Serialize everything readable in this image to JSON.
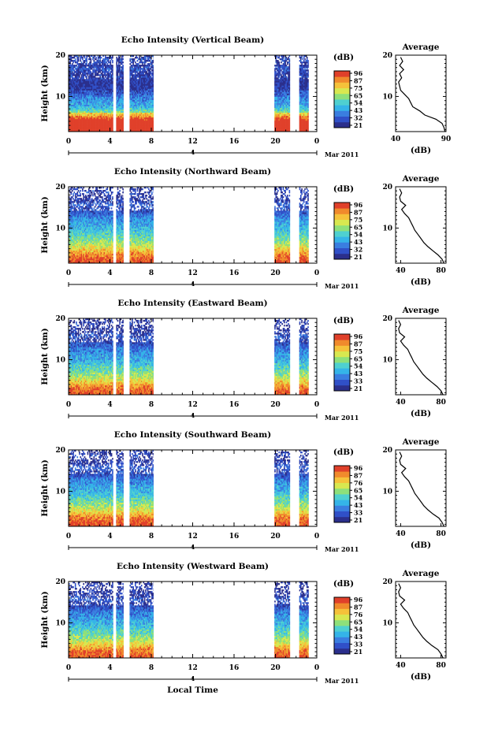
{
  "figure": {
    "xlabel": "Local Time",
    "date_label": "Mar 2011",
    "day_label": "4"
  },
  "colors": {
    "scale": [
      "#2b2f8c",
      "#3050c8",
      "#3a7ee0",
      "#35b4e8",
      "#4fd0d0",
      "#8ee07a",
      "#d8e850",
      "#f5c23a",
      "#f08a2c",
      "#e0402a"
    ]
  },
  "chart_data": [
    {
      "type": "heatmap",
      "title": "Echo Intensity (Vertical Beam)",
      "ylabel": "Height (km)",
      "x_ticks": [
        "0",
        "4",
        "8",
        "12",
        "16",
        "20",
        "0"
      ],
      "y_ticks": [
        "10",
        "20"
      ],
      "xlim": [
        0,
        24
      ],
      "ylim": [
        1.5,
        20
      ],
      "colorbar_unit": "(dB)",
      "colorbar_ticks": [
        "96",
        "87",
        "75",
        "65",
        "54",
        "43",
        "32",
        "21"
      ],
      "data_intervals_hours": [
        [
          0,
          4.3
        ],
        [
          4.6,
          5.3
        ],
        [
          5.9,
          8.2
        ],
        [
          19.9,
          21.4
        ],
        [
          22.3,
          23.2
        ]
      ],
      "profile": {
        "title": "Average",
        "xlabel": "(dB)",
        "x_ticks": [
          "40",
          "90"
        ],
        "xlim": [
          40,
          90
        ],
        "y_ticks": [
          "10",
          "20"
        ],
        "height": [
          1.5,
          2.5,
          3.5,
          4.5,
          5.5,
          6.5,
          7.5,
          8.5,
          9.5,
          10.5,
          11.5,
          12.5,
          13.5,
          14.5,
          15.5,
          16.5,
          17.5,
          18.5,
          19.5
        ],
        "value": [
          89,
          88,
          86,
          80,
          69,
          64,
          57,
          55,
          53,
          49,
          45,
          44,
          43,
          46,
          44,
          48,
          44,
          47,
          45
        ]
      }
    },
    {
      "type": "heatmap",
      "title": "Echo Intensity (Northward Beam)",
      "ylabel": "Height (km)",
      "x_ticks": [
        "0",
        "4",
        "8",
        "12",
        "16",
        "20",
        "0"
      ],
      "y_ticks": [
        "10",
        "20"
      ],
      "xlim": [
        0,
        24
      ],
      "ylim": [
        1.5,
        20
      ],
      "colorbar_unit": "(dB)",
      "colorbar_ticks": [
        "96",
        "87",
        "75",
        "65",
        "54",
        "43",
        "32",
        "21"
      ],
      "data_intervals_hours": [
        [
          0,
          4.3
        ],
        [
          4.6,
          5.3
        ],
        [
          5.9,
          8.2
        ],
        [
          19.9,
          21.4
        ],
        [
          22.3,
          23.2
        ]
      ],
      "profile": {
        "title": "Average",
        "xlabel": "(dB)",
        "x_ticks": [
          "40",
          "80"
        ],
        "xlim": [
          35,
          85
        ],
        "y_ticks": [
          "10",
          "20"
        ],
        "height": [
          1.5,
          2.5,
          3.5,
          4.5,
          5.5,
          6.5,
          7.5,
          8.5,
          9.5,
          10.5,
          11.5,
          12.5,
          13.5,
          14.5,
          15.5,
          16.5,
          17.5,
          18.5,
          19.5
        ],
        "value": [
          83,
          81,
          77,
          72,
          67,
          63,
          60,
          57,
          54,
          52,
          50,
          48,
          44,
          41,
          45,
          40,
          39,
          41,
          39
        ]
      }
    },
    {
      "type": "heatmap",
      "title": "Echo Intensity (Eastward Beam)",
      "ylabel": "Height (km)",
      "x_ticks": [
        "0",
        "4",
        "8",
        "12",
        "16",
        "20",
        "0"
      ],
      "y_ticks": [
        "10",
        "20"
      ],
      "xlim": [
        0,
        24
      ],
      "ylim": [
        1.5,
        20
      ],
      "colorbar_unit": "(dB)",
      "colorbar_ticks": [
        "96",
        "87",
        "75",
        "65",
        "54",
        "43",
        "33",
        "21"
      ],
      "data_intervals_hours": [
        [
          0,
          4.3
        ],
        [
          4.6,
          5.3
        ],
        [
          5.9,
          8.2
        ],
        [
          19.9,
          21.4
        ],
        [
          22.3,
          23.2
        ]
      ],
      "profile": {
        "title": "Average",
        "xlabel": "(dB)",
        "x_ticks": [
          "40",
          "80"
        ],
        "xlim": [
          35,
          85
        ],
        "y_ticks": [
          "10",
          "20"
        ],
        "height": [
          1.5,
          2.5,
          3.5,
          4.5,
          5.5,
          6.5,
          7.5,
          8.5,
          9.5,
          10.5,
          11.5,
          12.5,
          13.5,
          14.5,
          15.5,
          16.5,
          17.5,
          18.5,
          19.5
        ],
        "value": [
          82,
          80,
          76,
          71,
          66,
          62,
          59,
          56,
          53,
          51,
          49,
          47,
          43,
          40,
          44,
          39,
          38,
          40,
          38
        ]
      }
    },
    {
      "type": "heatmap",
      "title": "Echo Intensity (Southward Beam)",
      "ylabel": "Height (km)",
      "x_ticks": [
        "0",
        "4",
        "8",
        "12",
        "16",
        "20",
        "0"
      ],
      "y_ticks": [
        "10",
        "20"
      ],
      "xlim": [
        0,
        24
      ],
      "ylim": [
        1.5,
        20
      ],
      "colorbar_unit": "(dB)",
      "colorbar_ticks": [
        "96",
        "87",
        "76",
        "65",
        "54",
        "43",
        "33",
        "21"
      ],
      "data_intervals_hours": [
        [
          0,
          4.3
        ],
        [
          4.6,
          5.3
        ],
        [
          5.9,
          8.2
        ],
        [
          19.9,
          21.4
        ],
        [
          22.3,
          23.2
        ]
      ],
      "profile": {
        "title": "Average",
        "xlabel": "(dB)",
        "x_ticks": [
          "40",
          "80"
        ],
        "xlim": [
          35,
          85
        ],
        "y_ticks": [
          "10",
          "20"
        ],
        "height": [
          1.5,
          2.5,
          3.5,
          4.5,
          5.5,
          6.5,
          7.5,
          8.5,
          9.5,
          10.5,
          11.5,
          12.5,
          13.5,
          14.5,
          15.5,
          16.5,
          17.5,
          18.5,
          19.5
        ],
        "value": [
          83,
          81,
          78,
          72,
          67,
          63,
          60,
          57,
          54,
          52,
          50,
          48,
          44,
          41,
          45,
          40,
          39,
          41,
          39
        ]
      }
    },
    {
      "type": "heatmap",
      "title": "Echo Intensity (Westward Beam)",
      "ylabel": "Height (km)",
      "x_ticks": [
        "0",
        "4",
        "8",
        "12",
        "16",
        "20",
        "0"
      ],
      "y_ticks": [
        "10",
        "20"
      ],
      "xlim": [
        0,
        24
      ],
      "ylim": [
        1.5,
        20
      ],
      "colorbar_unit": "(dB)",
      "colorbar_ticks": [
        "96",
        "87",
        "76",
        "65",
        "54",
        "43",
        "33",
        "21"
      ],
      "data_intervals_hours": [
        [
          0,
          4.3
        ],
        [
          4.6,
          5.3
        ],
        [
          5.9,
          8.2
        ],
        [
          19.9,
          21.4
        ],
        [
          22.3,
          23.2
        ]
      ],
      "profile": {
        "title": "Average",
        "xlabel": "(dB)",
        "x_ticks": [
          "40",
          "80"
        ],
        "xlim": [
          35,
          85
        ],
        "y_ticks": [
          "10",
          "20"
        ],
        "height": [
          1.5,
          2.5,
          3.5,
          4.5,
          5.5,
          6.5,
          7.5,
          8.5,
          9.5,
          10.5,
          11.5,
          12.5,
          13.5,
          14.5,
          15.5,
          16.5,
          17.5,
          18.5,
          19.5
        ],
        "value": [
          82,
          80,
          77,
          71,
          66,
          62,
          59,
          56,
          53,
          51,
          49,
          47,
          43,
          40,
          44,
          39,
          38,
          40,
          38
        ]
      }
    }
  ]
}
